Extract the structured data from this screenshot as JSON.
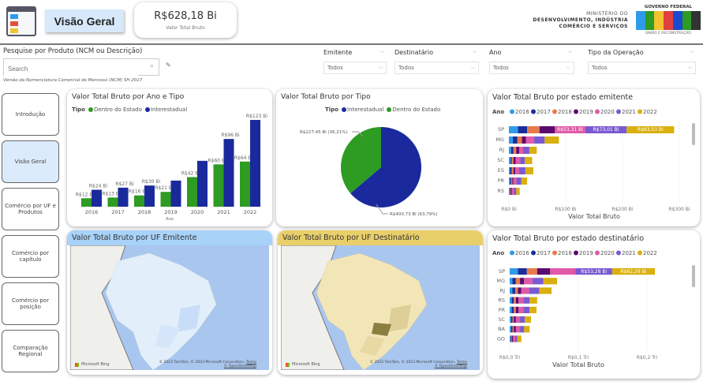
{
  "header": {
    "page_title": "Visão Geral",
    "kpi_value": "R$628,18 Bi",
    "kpi_label": "Valor Total Bruto",
    "ministry_line1": "MINISTÉRIO DO",
    "ministry_line2": "DESENVOLVIMENTO, INDÚSTRIA",
    "ministry_line3": "COMÉRCIO E SERVIÇOS",
    "gov_top": "GOVERNO FEDERAL",
    "gov_logo": "BRASIL",
    "gov_bottom": "UNIÃO E RECONSTRUÇÃO"
  },
  "search": {
    "label": "Pesquise por Produto (NCM ou Descrição)",
    "placeholder": "Search",
    "note": "Versão da Nomenclatura Comercial do Mercosul (NCM) SH 2017"
  },
  "filters": [
    {
      "label": "Emitente",
      "value": "Todos"
    },
    {
      "label": "Destinatário",
      "value": "Todos"
    },
    {
      "label": "Ano",
      "value": "Todos"
    },
    {
      "label": "Tipo da Operação",
      "value": "Todos"
    }
  ],
  "nav": [
    "Introdução",
    "Visão Geral",
    "Comércio por UF e Produtos",
    "Comércio por capítulo",
    "Comércio por posição",
    "Comparação Regional"
  ],
  "colors": {
    "dentro": "#2e9b22",
    "inter": "#1a2a9c",
    "years": [
      "#2f9be8",
      "#1a2d9c",
      "#e87a4a",
      "#5c0a6e",
      "#e05aa8",
      "#7a5ad0",
      "#d9b00e"
    ]
  },
  "maps": {
    "emitente_title": "Valor Total Bruto por UF Emitente",
    "destinatario_title": "Valor Total Bruto por UF Destinatário",
    "bing": "Microsoft Bing",
    "copyright": "© 2023 TomTom, © 2023 Microsoft Corporation,",
    "terms": "Terms",
    "osm": "© OpenStreetMap"
  },
  "chart_data": [
    {
      "type": "bar",
      "title": "Valor Total Bruto por Ano e Tipo",
      "legend_title": "Tipo",
      "xlabel": "Ano",
      "categories": [
        "2016",
        "2017",
        "2018",
        "2019",
        "2020",
        "2021",
        "2022"
      ],
      "series": [
        {
          "name": "Dentro do Estado",
          "values": [
            12,
            13,
            16,
            21,
            42,
            60,
            64
          ],
          "labels": [
            "R$12 Bi",
            "R$13 Bi",
            "R$16 Bi",
            "R$21 Bi",
            "R$42 Bi",
            "R$60 Bi",
            "R$64 Bi"
          ]
        },
        {
          "name": "Interestadual",
          "values": [
            24,
            27,
            30,
            37,
            65,
            96,
            123
          ],
          "labels": [
            "R$24 Bi",
            "R$27 Bi",
            "R$30 Bi",
            "",
            "",
            "R$96 Bi",
            "R$123 Bi"
          ]
        }
      ]
    },
    {
      "type": "pie",
      "title": "Valor Total Bruto por Tipo",
      "legend_title": "Tipo",
      "slices": [
        {
          "name": "Interestadual",
          "value": 400.73,
          "pct": 63.79,
          "label": "R$400,73 Bi (63,79%)"
        },
        {
          "name": "Dentro do Estado",
          "value": 227.45,
          "pct": 36.21,
          "label": "R$227,45 Bi (36,21%)"
        }
      ]
    },
    {
      "type": "bar",
      "orientation": "horizontal-stacked",
      "title": "Valor Total Bruto por estado emitente",
      "legend_title": "Ano",
      "xlabel": "Valor Total Bruto",
      "years": [
        "2016",
        "2017",
        "2018",
        "2019",
        "2020",
        "2021",
        "2022"
      ],
      "xmax": 300,
      "ticks": [
        "R$0 Bi",
        "R$100 Bi",
        "R$200 Bi",
        "R$300 Bi"
      ],
      "rows": [
        {
          "uf": "SP",
          "values": [
            16,
            16,
            22,
            27,
            53.31,
            73.01,
            83.53
          ],
          "labels": [
            "",
            "",
            "",
            "",
            "R$53,31 Bi",
            "R$73,01 Bi",
            "R$83,53 Bi"
          ]
        },
        {
          "uf": "MG",
          "values": [
            7,
            8,
            8,
            7,
            14,
            19,
            25
          ]
        },
        {
          "uf": "RJ",
          "values": [
            4,
            4,
            5,
            5,
            7,
            11,
            13
          ]
        },
        {
          "uf": "SC",
          "values": [
            3,
            2,
            3,
            4,
            8,
            8,
            13
          ]
        },
        {
          "uf": "ES",
          "values": [
            2,
            3,
            3,
            3,
            7,
            11,
            14
          ]
        },
        {
          "uf": "PR",
          "values": [
            2,
            2,
            2,
            2,
            5,
            9,
            10
          ]
        },
        {
          "uf": "RS",
          "values": [
            1,
            1,
            1,
            2,
            4,
            4,
            6
          ]
        }
      ]
    },
    {
      "type": "bar",
      "orientation": "horizontal-stacked",
      "title": "Valor Total Bruto por estado destinatário",
      "legend_title": "Ano",
      "xlabel": "Valor Total Bruto",
      "years": [
        "2016",
        "2017",
        "2018",
        "2019",
        "2020",
        "2021",
        "2022"
      ],
      "xmax": 230,
      "ticks": [
        "R$0,0 Tri",
        "R$0,1 Tri",
        "R$0,2 Tri"
      ],
      "rows": [
        {
          "uf": "SP",
          "values": [
            12,
            13,
            15,
            19,
            37,
            53.28,
            62.29
          ],
          "labels": [
            "",
            "",
            "",
            "",
            "",
            "R$53,28 Bi",
            "R$62,29 Bi"
          ]
        },
        {
          "uf": "MG",
          "values": [
            4,
            5,
            6,
            6,
            12,
            16,
            20
          ]
        },
        {
          "uf": "RJ",
          "values": [
            4,
            4,
            4,
            5,
            11,
            15,
            18
          ]
        },
        {
          "uf": "RS",
          "values": [
            3,
            3,
            3,
            4,
            7,
            9,
            11
          ]
        },
        {
          "uf": "PR",
          "values": [
            3,
            3,
            3,
            4,
            7,
            9,
            10
          ]
        },
        {
          "uf": "SC",
          "values": [
            2,
            2,
            2,
            3,
            6,
            7,
            9
          ]
        },
        {
          "uf": "BA",
          "values": [
            2,
            2,
            2,
            3,
            6,
            6,
            8
          ]
        },
        {
          "uf": "GO",
          "values": [
            1,
            1,
            1,
            2,
            3,
            3,
            6
          ]
        }
      ]
    }
  ]
}
